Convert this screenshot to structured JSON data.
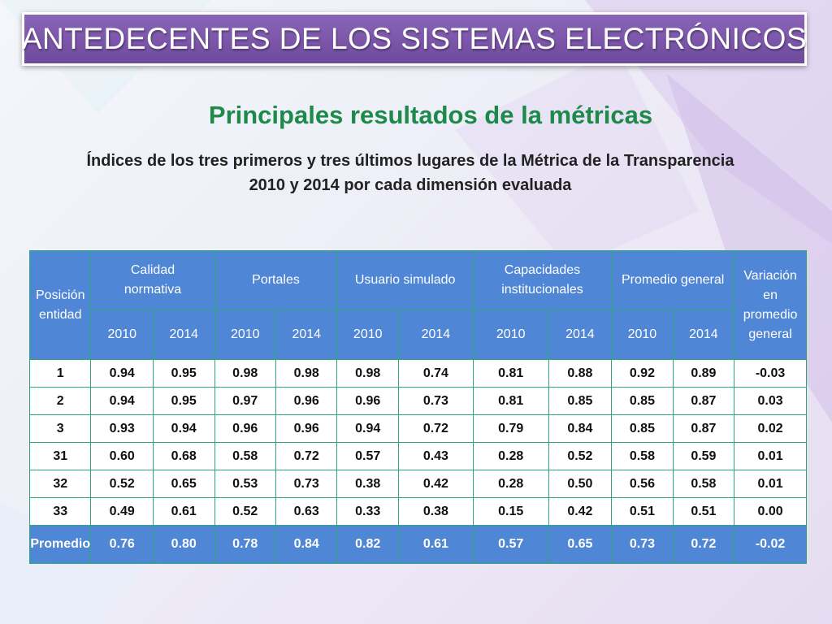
{
  "slide": {
    "title": "ANTEDECENTES DE LOS SISTEMAS ELECTRÓNICOS",
    "subtitle": "Principales resultados de la métricas",
    "caption_line1": "Índices de los tres primeros y tres últimos  lugares de la Métrica de la Transparencia",
    "caption_line2": "2010 y 2014 por cada dimensión evaluada"
  },
  "table": {
    "col_position": "Posición entidad",
    "groups": [
      "Calidad normativa",
      "Portales",
      "Usuario simulado",
      "Capacidades institucionales",
      "Promedio general"
    ],
    "col_variation": "Variación en promedio general",
    "years": [
      "2010",
      "2014",
      "2010",
      "2014",
      "2010",
      "2014",
      "2010",
      "2014",
      "2010",
      "2014"
    ],
    "rows": [
      [
        "1",
        "0.94",
        "0.95",
        "0.98",
        "0.98",
        "0.98",
        "0.74",
        "0.81",
        "0.88",
        "0.92",
        "0.89",
        "-0.03"
      ],
      [
        "2",
        "0.94",
        "0.95",
        "0.97",
        "0.96",
        "0.96",
        "0.73",
        "0.81",
        "0.85",
        "0.85",
        "0.87",
        "0.03"
      ],
      [
        "3",
        "0.93",
        "0.94",
        "0.96",
        "0.96",
        "0.94",
        "0.72",
        "0.79",
        "0.84",
        "0.85",
        "0.87",
        "0.02"
      ],
      [
        "31",
        "0.60",
        "0.68",
        "0.58",
        "0.72",
        "0.57",
        "0.43",
        "0.28",
        "0.52",
        "0.58",
        "0.59",
        "0.01"
      ],
      [
        "32",
        "0.52",
        "0.65",
        "0.53",
        "0.73",
        "0.38",
        "0.42",
        "0.28",
        "0.50",
        "0.56",
        "0.58",
        "0.01"
      ],
      [
        "33",
        "0.49",
        "0.61",
        "0.52",
        "0.63",
        "0.33",
        "0.38",
        "0.15",
        "0.42",
        "0.51",
        "0.51",
        "0.00"
      ]
    ],
    "average_row": [
      "Promedio",
      "0.76",
      "0.80",
      "0.78",
      "0.84",
      "0.82",
      "0.61",
      "0.57",
      "0.65",
      "0.73",
      "0.72",
      "-0.02"
    ]
  },
  "colors": {
    "title_bar": "#7a55a8",
    "subtitle": "#1e8a4a",
    "table_header": "#4f86d6",
    "table_border": "#2aa876"
  }
}
